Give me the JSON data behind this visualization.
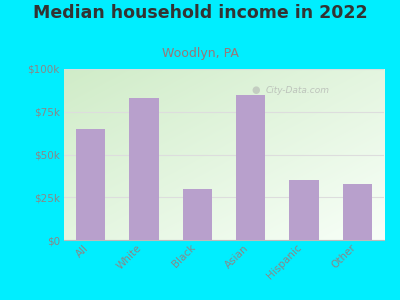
{
  "title": "Median household income in 2022",
  "subtitle": "Woodlyn, PA",
  "categories": [
    "All",
    "White",
    "Black",
    "Asian",
    "Hispanic",
    "Other"
  ],
  "values": [
    65000,
    83000,
    30000,
    85000,
    35000,
    33000
  ],
  "bar_color": "#b8a0cc",
  "background_outer": "#00eeff",
  "background_inner_left": "#c8e8c0",
  "background_inner_right": "#f8fff8",
  "title_color": "#333333",
  "subtitle_color": "#997777",
  "tick_label_color": "#888888",
  "grid_color": "#dddddd",
  "watermark_text": "City-Data.com",
  "ylim": [
    0,
    100000
  ],
  "yticks": [
    0,
    25000,
    50000,
    75000,
    100000
  ],
  "ytick_labels": [
    "$0",
    "$25k",
    "$50k",
    "$75k",
    "$100k"
  ],
  "title_fontsize": 12.5,
  "subtitle_fontsize": 9,
  "tick_fontsize": 7.5,
  "figsize": [
    4.0,
    3.0
  ],
  "dpi": 100
}
